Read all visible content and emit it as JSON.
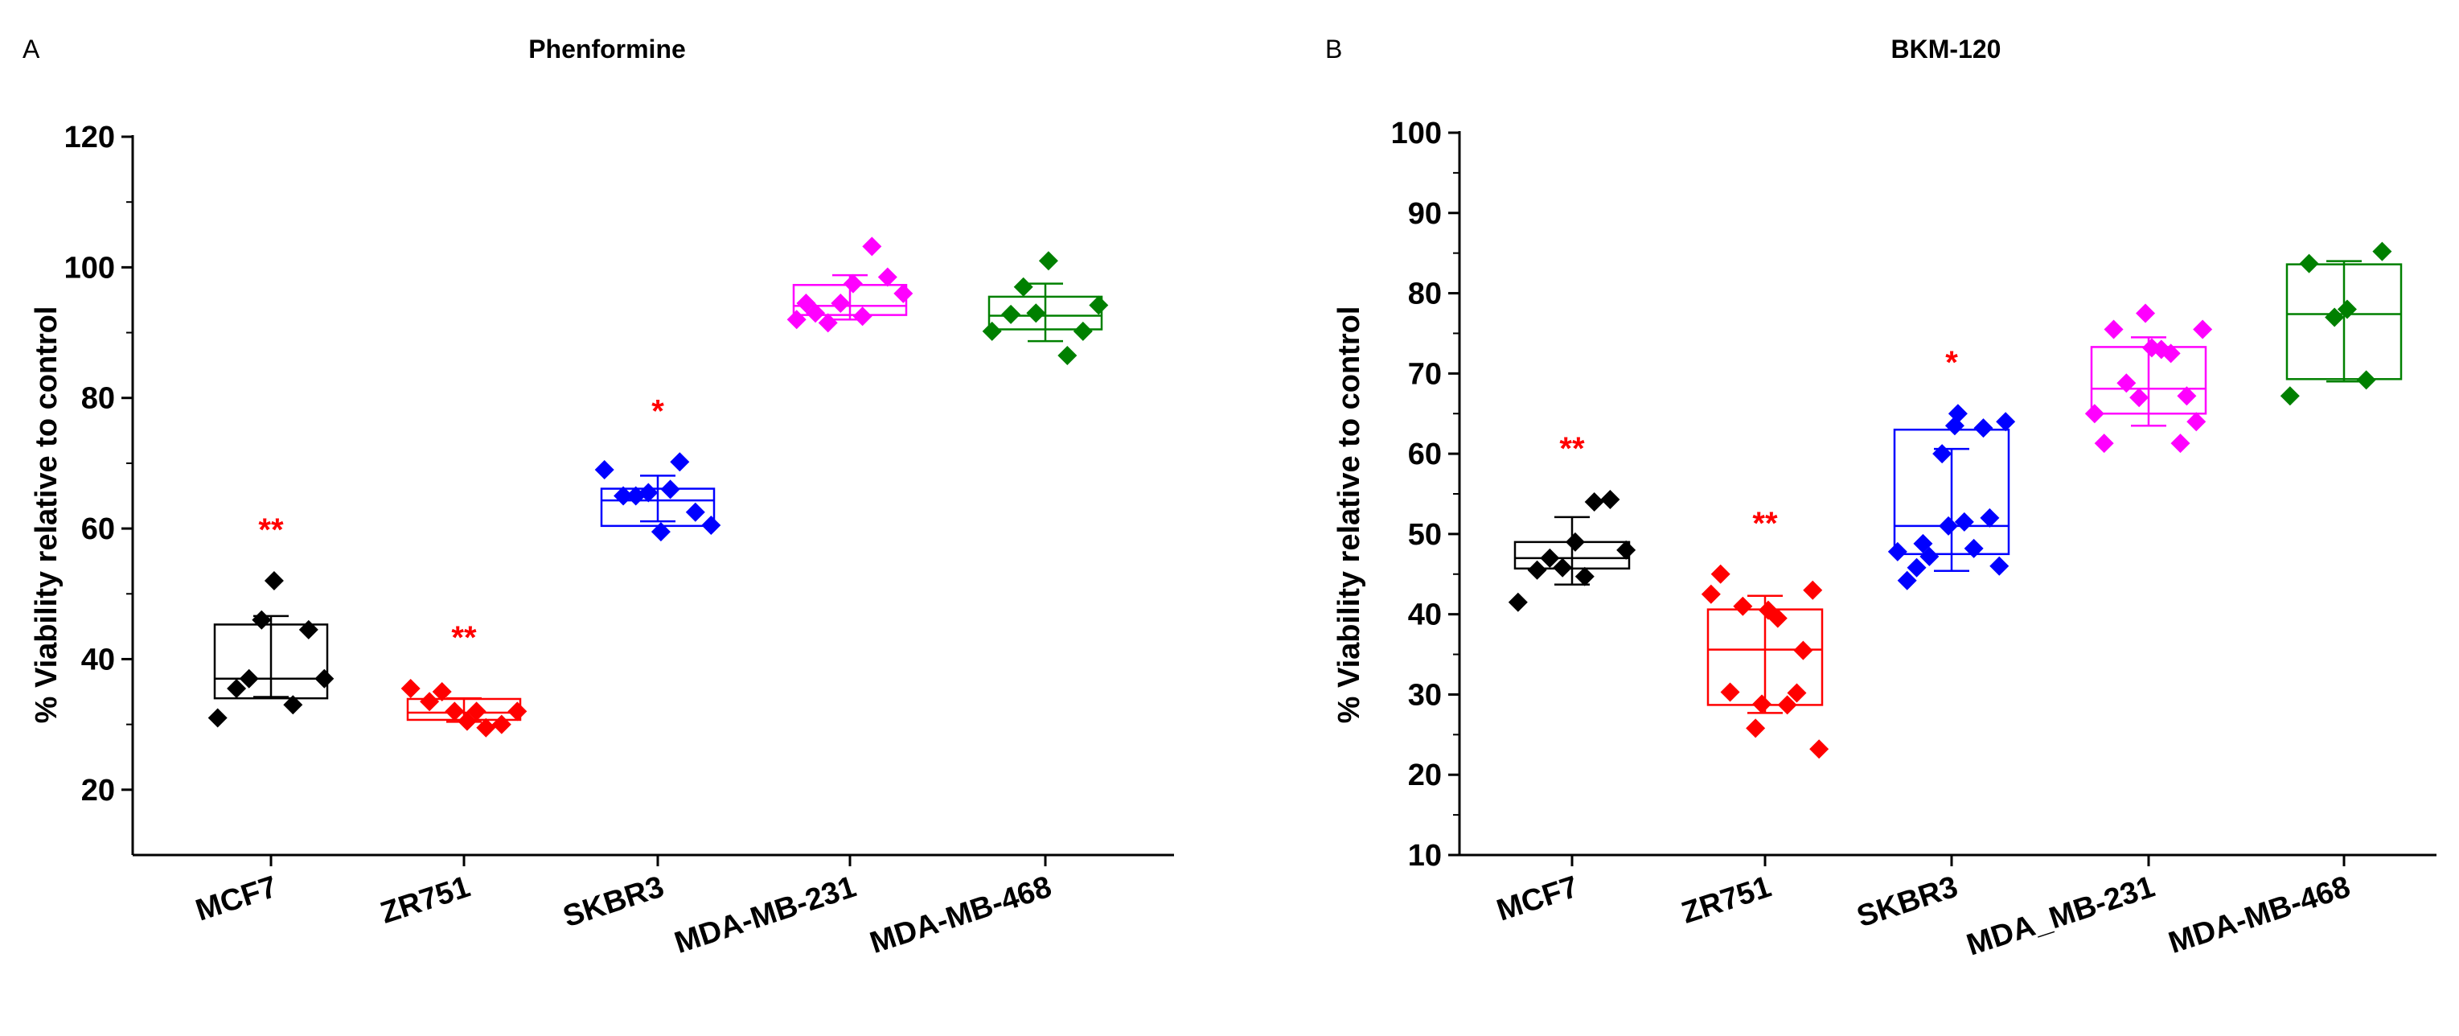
{
  "colors": {
    "MCF7": "#000000",
    "ZR751": "#ff0000",
    "SKBR3": "#0000ff",
    "MDA-MB-231": "#ff00ff",
    "MDA-MB-468": "#008000",
    "significance": "#ff0000",
    "axis": "#000000"
  },
  "chart_data": [
    {
      "type": "box",
      "panel_letter": "A",
      "title": "Phenformine",
      "xlabel": "",
      "ylabel": "% Viability relative to control",
      "ylim": [
        10,
        120
      ],
      "yticks": [
        20,
        40,
        60,
        80,
        100,
        120
      ],
      "categories": [
        "MCF7",
        "ZR751",
        "SKBR3",
        "MDA-MB-231",
        "MDA-MB-468"
      ],
      "series": [
        {
          "category": "MCF7",
          "box": {
            "q1": 34,
            "median": 37,
            "q3": 45.3
          },
          "mean_sd": {
            "mean": 40.4,
            "sd": 6.2
          },
          "significance": "**",
          "points": [
            31,
            35.5,
            46,
            52,
            33,
            44.5,
            37,
            37
          ]
        },
        {
          "category": "ZR751",
          "box": {
            "q1": 30.7,
            "median": 31.8,
            "q3": 33.9
          },
          "mean_sd": {
            "mean": 32.2,
            "sd": 1.8
          },
          "significance": "**",
          "points": [
            35.5,
            33.5,
            32,
            30.5,
            29.5,
            30,
            32,
            35,
            32
          ]
        },
        {
          "category": "SKBR3",
          "box": {
            "q1": 60.4,
            "median": 64.3,
            "q3": 66.1
          },
          "mean_sd": {
            "mean": 64.6,
            "sd": 3.5
          },
          "significance": "*",
          "points": [
            69,
            65,
            65.5,
            59.5,
            70.2,
            62.5,
            60.5,
            65,
            66
          ]
        },
        {
          "category": "MDA-MB-231",
          "box": {
            "q1": 92.7,
            "median": 94.1,
            "q3": 97.3
          },
          "mean_sd": {
            "mean": 95.4,
            "sd": 3.4
          },
          "significance": "",
          "points": [
            92,
            93,
            94.5,
            97.5,
            103.2,
            98.5,
            96,
            91.5,
            92.5,
            94.5
          ]
        },
        {
          "category": "MDA-MB-468",
          "box": {
            "q1": 90.5,
            "median": 92.6,
            "q3": 95.5
          },
          "mean_sd": {
            "mean": 93.1,
            "sd": 4.4
          },
          "significance": "",
          "points": [
            90.2,
            92.8,
            93,
            101,
            86.5,
            90.2,
            94.2,
            97
          ]
        }
      ]
    },
    {
      "type": "box",
      "panel_letter": "B",
      "title": "BKM-120",
      "xlabel": "",
      "ylabel": "% Viability relative to control",
      "ylim": [
        10,
        100
      ],
      "yticks": [
        10,
        20,
        30,
        40,
        50,
        60,
        70,
        80,
        90,
        100
      ],
      "categories": [
        "MCF7",
        "ZR751",
        "SKBR3",
        "MDA_MB-231",
        "MDA-MB-468"
      ],
      "series": [
        {
          "category": "MCF7",
          "box": {
            "q1": 45.7,
            "median": 47,
            "q3": 49
          },
          "mean_sd": {
            "mean": 47.9,
            "sd": 4.2
          },
          "significance": "**",
          "points": [
            41.5,
            45.5,
            45.8,
            49,
            54,
            54.3,
            48,
            47,
            44.7
          ]
        },
        {
          "category": "ZR751",
          "box": {
            "q1": 28.7,
            "median": 35.6,
            "q3": 40.6
          },
          "mean_sd": {
            "mean": 35,
            "sd": 7.3
          },
          "significance": "**",
          "points": [
            42.5,
            30.3,
            25.8,
            40.5,
            28.7,
            35.5,
            23.2,
            41,
            39.5,
            45,
            30.2,
            28.8,
            43
          ]
        },
        {
          "category": "SKBR3",
          "box": {
            "q1": 47.5,
            "median": 51,
            "q3": 63
          },
          "mean_sd": {
            "mean": 53,
            "sd": 7.6
          },
          "significance": "*",
          "points": [
            47.8,
            45.8,
            60,
            63.5,
            48.2,
            52,
            64,
            47.2,
            51.5,
            44.2,
            63.2,
            51,
            46,
            48.8,
            65
          ]
        },
        {
          "category": "MDA_MB-231",
          "box": {
            "q1": 65,
            "median": 68.1,
            "q3": 73.3
          },
          "mean_sd": {
            "mean": 69,
            "sd": 5.5
          },
          "significance": "",
          "points": [
            65,
            75.5,
            67,
            73.2,
            72.5,
            67.2,
            75.5,
            68.8,
            73,
            61.3,
            61.3,
            77.5,
            64
          ]
        },
        {
          "category": "MDA-MB-468",
          "box": {
            "q1": 69.3,
            "median": 77.4,
            "q3": 83.6
          },
          "mean_sd": {
            "mean": 76.5,
            "sd": 7.5
          },
          "significance": "",
          "points": [
            67.2,
            83.7,
            77,
            78,
            69.2,
            85.2
          ]
        }
      ]
    }
  ]
}
